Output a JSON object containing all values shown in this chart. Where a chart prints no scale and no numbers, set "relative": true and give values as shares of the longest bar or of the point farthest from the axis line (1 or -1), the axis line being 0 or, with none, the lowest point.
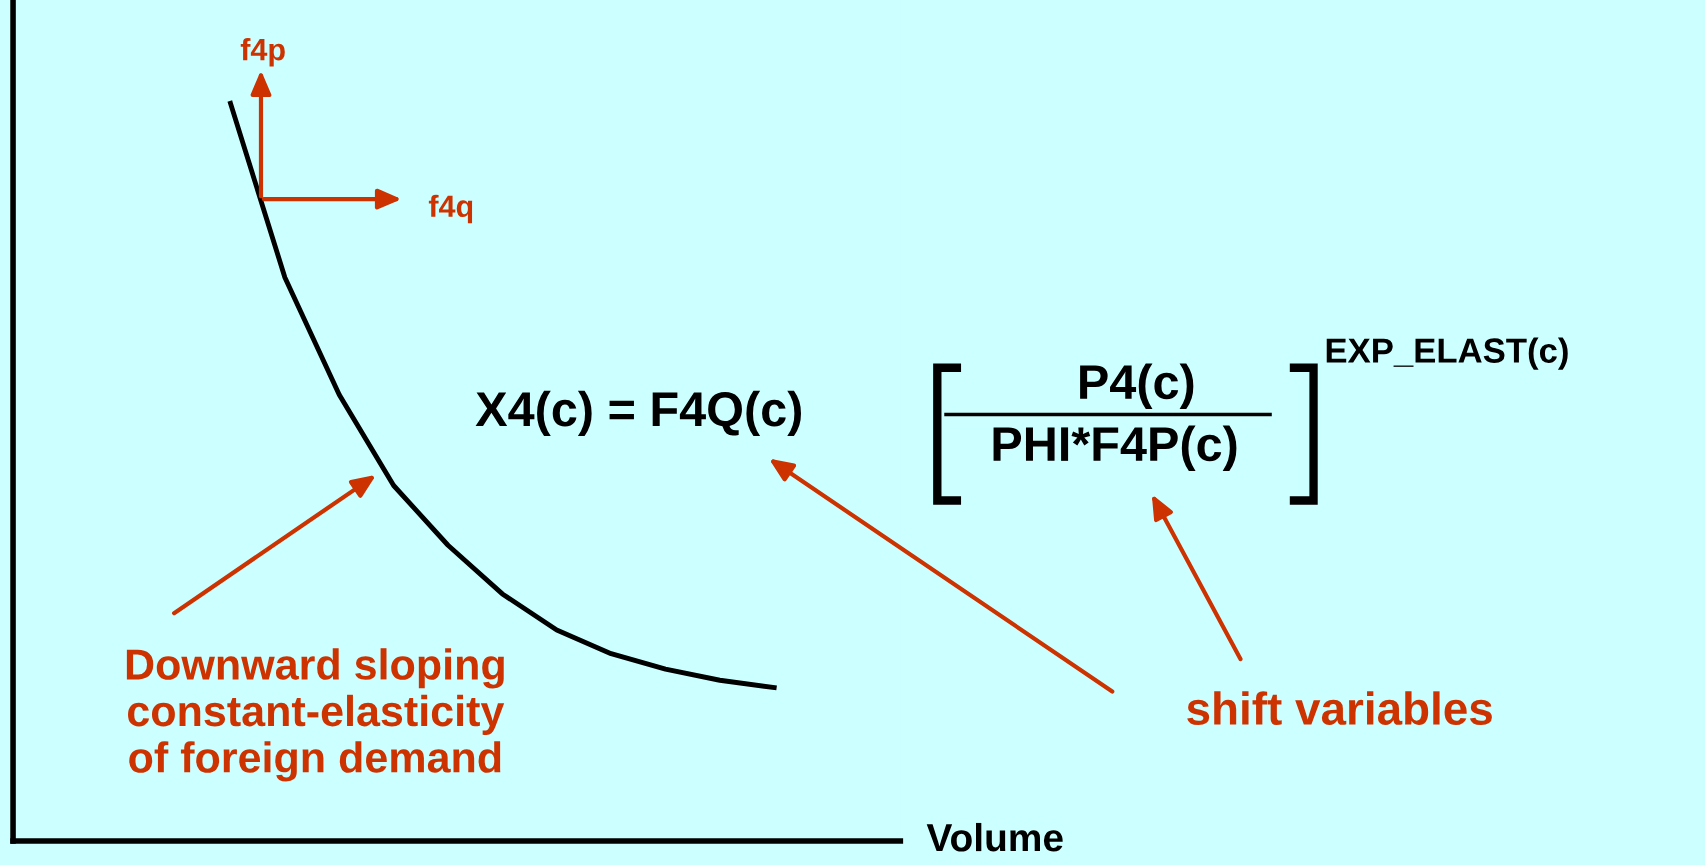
{
  "chart_data": {
    "type": "line",
    "relative": true,
    "xlabel": "Volume",
    "categories": [
      null,
      null,
      null,
      null,
      null,
      null,
      null,
      null,
      null,
      null,
      null,
      null,
      null,
      null,
      null,
      null,
      null
    ],
    "series": [
      {
        "color": "#000000",
        "values": [
          null,
          null,
          null,
          null,
          1.0,
          0.764,
          0.605,
          0.482,
          0.401,
          0.335,
          0.286,
          0.254,
          0.233,
          0.218,
          0.208,
          null,
          null
        ]
      }
    ],
    "annotations": [
      "f4p",
      "f4q",
      "Downward sloping\nconstant-elasticity\nof foreign demand",
      "X4(c) = F4Q(c)",
      "P4(c)",
      "PHI*F4P(c)",
      "EXP_ELAST(c)",
      "shift variables"
    ],
    "grid": false,
    "legend": false,
    "marker": "none",
    "line_style": "solid"
  }
}
